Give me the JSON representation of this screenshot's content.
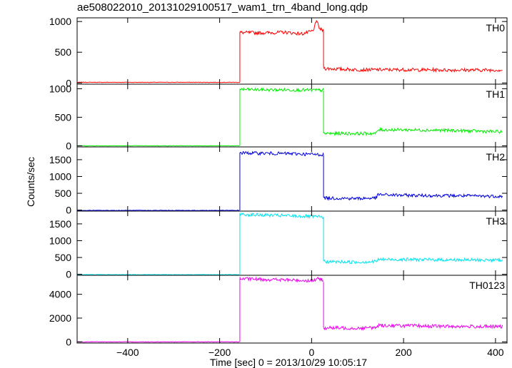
{
  "title": "ae508022010_20131029100517_wam1_trn_4band_long.qdp",
  "chart_data": {
    "type": "line",
    "title": "ae508022010_20131029100517_wam1_trn_4band_long.qdp",
    "xlabel": "Time [sec] 0 = 2013/10/29 10:05:17",
    "ylabel": "Counts/sec",
    "xlim": [
      -510,
      425
    ],
    "x_ticks": [
      -400,
      -200,
      0,
      200,
      400
    ],
    "grid": false,
    "panels": [
      {
        "name": "TH0",
        "color": "#ff0000",
        "ylim": [
          -20,
          1060
        ],
        "y_ticks": [
          0,
          500,
          1000
        ],
        "series": [
          {
            "x": [
              -510,
              -157,
              -156
            ],
            "y": [
              10,
              10,
              10
            ]
          },
          {
            "x": [
              -156,
              -155,
              -100,
              -60,
              -20,
              5,
              8,
              12,
              18,
              25,
              26
            ],
            "y": [
              830,
              820,
              815,
              825,
              800,
              850,
              1000,
              980,
              880,
              850,
              840
            ]
          },
          {
            "x": [
              26,
              28,
              30,
              100,
              200,
              300,
              415
            ],
            "y": [
              250,
              240,
              235,
              215,
              215,
              210,
              210
            ]
          }
        ]
      },
      {
        "name": "TH1",
        "color": "#00ee00",
        "ylim": [
          -20,
          1080
        ],
        "y_ticks": [
          0,
          500,
          1000
        ],
        "series": [
          {
            "x": [
              -510,
              -157
            ],
            "y": [
              0,
              0
            ]
          },
          {
            "x": [
              -156,
              -155,
              -100,
              -50,
              0,
              25,
              26
            ],
            "y": [
              1000,
              990,
              980,
              980,
              975,
              975,
              970
            ]
          },
          {
            "x": [
              26,
              28,
              140,
              145,
              200,
              300,
              415
            ],
            "y": [
              220,
              215,
              215,
              280,
              280,
              270,
              245
            ]
          }
        ]
      },
      {
        "name": "TH2",
        "color": "#0000dd",
        "ylim": [
          -30,
          1880
        ],
        "y_ticks": [
          0,
          500,
          1000,
          1500
        ],
        "series": [
          {
            "x": [
              -510,
              -157
            ],
            "y": [
              -10,
              -10
            ]
          },
          {
            "x": [
              -156,
              -155,
              -100,
              -50,
              0,
              25,
              26
            ],
            "y": [
              1710,
              1700,
              1690,
              1680,
              1660,
              1650,
              1640
            ]
          },
          {
            "x": [
              26,
              28,
              100,
              140,
              145,
              200,
              300,
              415
            ],
            "y": [
              380,
              360,
              345,
              360,
              460,
              440,
              430,
              410
            ]
          }
        ]
      },
      {
        "name": "TH3",
        "color": "#00e5ee",
        "ylim": [
          -30,
          1880
        ],
        "y_ticks": [
          0,
          500,
          1000,
          1500
        ],
        "series": [
          {
            "x": [
              -510,
              -157
            ],
            "y": [
              -10,
              -10
            ]
          },
          {
            "x": [
              -156,
              -155,
              -100,
              -50,
              0,
              25,
              26
            ],
            "y": [
              1800,
              1780,
              1760,
              1740,
              1720,
              1700,
              1690
            ]
          },
          {
            "x": [
              26,
              28,
              100,
              140,
              145,
              200,
              300,
              415
            ],
            "y": [
              390,
              375,
              360,
              380,
              440,
              440,
              430,
              420
            ]
          }
        ]
      },
      {
        "name": "TH0123",
        "color": "#ee00ee",
        "ylim": [
          -100,
          5600
        ],
        "y_ticks": [
          0,
          2000,
          4000
        ],
        "series": [
          {
            "x": [
              -510,
              -157
            ],
            "y": [
              0,
              0
            ]
          },
          {
            "x": [
              -156,
              -155,
              -100,
              -50,
              0,
              15,
              25,
              26
            ],
            "y": [
              5350,
              5300,
              5250,
              5200,
              5150,
              5300,
              5200,
              5050
            ]
          },
          {
            "x": [
              26,
              28,
              100,
              140,
              145,
              200,
              300,
              415
            ],
            "y": [
              1200,
              1180,
              1150,
              1200,
              1380,
              1360,
              1300,
              1280
            ]
          }
        ]
      }
    ]
  }
}
